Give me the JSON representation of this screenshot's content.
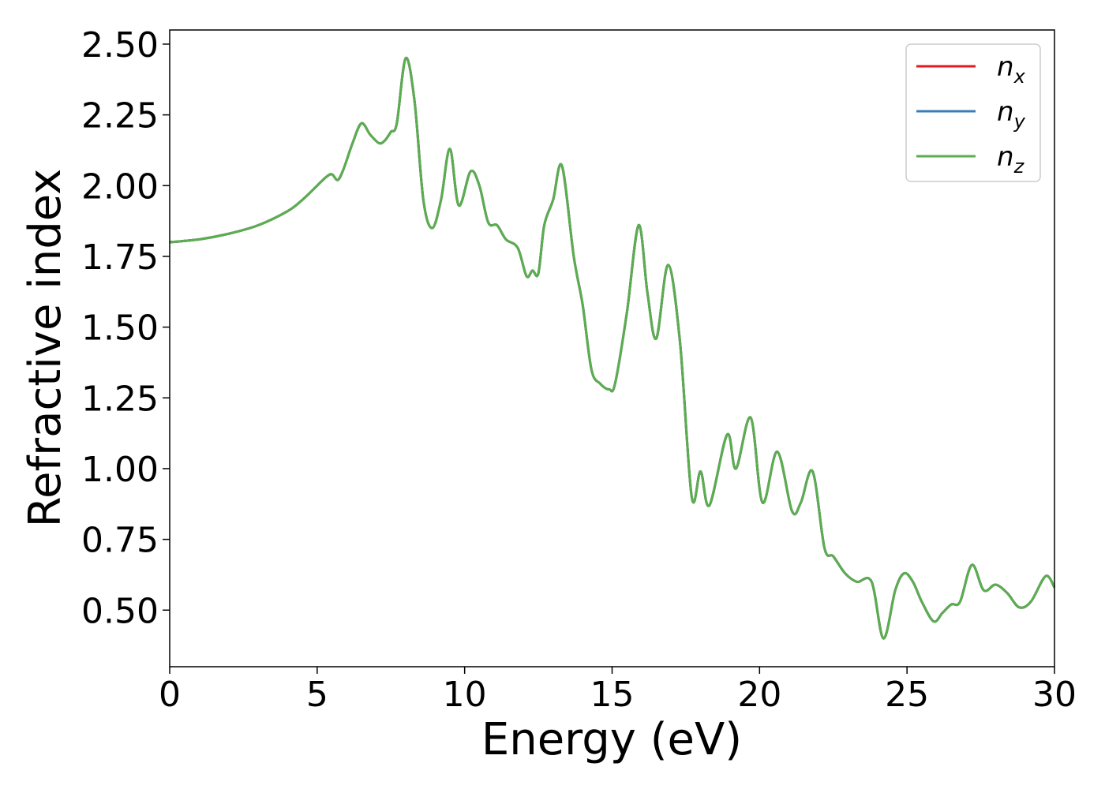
{
  "chart_data": {
    "type": "line",
    "xlabel": "Energy (eV)",
    "ylabel": "Refractive index",
    "xlim": [
      0,
      30
    ],
    "ylim": [
      0.3,
      2.55
    ],
    "xticks": [
      "0",
      "5",
      "10",
      "15",
      "20",
      "25",
      "30"
    ],
    "yticks": [
      "0.50",
      "0.75",
      "1.00",
      "1.25",
      "1.50",
      "1.75",
      "2.00",
      "2.25",
      "2.50"
    ],
    "grid": false,
    "legend_position": "top-right",
    "series": [
      {
        "name": "n_x",
        "legend_base": "n",
        "legend_sub": "x",
        "color": "#e41a1c",
        "x": [
          0,
          1,
          2,
          3,
          4,
          4.5,
          5,
          5.3,
          5.5,
          5.7,
          5.9,
          6.2,
          6.5,
          6.8,
          7.1,
          7.3,
          7.5,
          7.7,
          8,
          8.3,
          8.6,
          8.9,
          9.2,
          9.5,
          9.8,
          10.2,
          10.5,
          10.8,
          11.1,
          11.4,
          11.8,
          12.1,
          12.3,
          12.5,
          12.7,
          13,
          13.3,
          13.7,
          14,
          14.3,
          14.6,
          14.9,
          15.1,
          15.5,
          15.9,
          16.2,
          16.5,
          16.9,
          17.3,
          17.7,
          18,
          18.3,
          18.9,
          19.2,
          19.7,
          20.1,
          20.6,
          21.1,
          21.4,
          21.8,
          22.2,
          22.5,
          22.9,
          23.3,
          23.8,
          24.2,
          24.6,
          24.9,
          25.2,
          25.5,
          25.9,
          26.2,
          26.5,
          26.8,
          27.2,
          27.6,
          28,
          28.4,
          28.8,
          29.2,
          29.7,
          30
        ],
        "y": [
          1.8,
          1.81,
          1.83,
          1.86,
          1.91,
          1.95,
          2.0,
          2.03,
          2.04,
          2.02,
          2.06,
          2.15,
          2.22,
          2.18,
          2.15,
          2.16,
          2.19,
          2.22,
          2.45,
          2.3,
          1.95,
          1.85,
          1.95,
          2.13,
          1.93,
          2.05,
          2.0,
          1.87,
          1.86,
          1.81,
          1.78,
          1.68,
          1.7,
          1.69,
          1.86,
          1.95,
          2.07,
          1.75,
          1.58,
          1.35,
          1.3,
          1.28,
          1.3,
          1.55,
          1.86,
          1.62,
          1.46,
          1.72,
          1.45,
          0.9,
          0.99,
          0.87,
          1.12,
          1.0,
          1.18,
          0.88,
          1.06,
          0.85,
          0.88,
          0.99,
          0.72,
          0.69,
          0.63,
          0.6,
          0.6,
          0.4,
          0.57,
          0.63,
          0.6,
          0.53,
          0.46,
          0.49,
          0.52,
          0.53,
          0.66,
          0.57,
          0.59,
          0.56,
          0.51,
          0.53,
          0.62,
          0.58
        ]
      },
      {
        "name": "n_y",
        "legend_base": "n",
        "legend_sub": "y",
        "color": "#377eb8",
        "x": [
          0,
          1,
          2,
          3,
          4,
          4.5,
          5,
          5.3,
          5.5,
          5.7,
          5.9,
          6.2,
          6.5,
          6.8,
          7.1,
          7.3,
          7.5,
          7.7,
          8,
          8.3,
          8.6,
          8.9,
          9.2,
          9.5,
          9.8,
          10.2,
          10.5,
          10.8,
          11.1,
          11.4,
          11.8,
          12.1,
          12.3,
          12.5,
          12.7,
          13,
          13.3,
          13.7,
          14,
          14.3,
          14.6,
          14.9,
          15.1,
          15.5,
          15.9,
          16.2,
          16.5,
          16.9,
          17.3,
          17.7,
          18,
          18.3,
          18.9,
          19.2,
          19.7,
          20.1,
          20.6,
          21.1,
          21.4,
          21.8,
          22.2,
          22.5,
          22.9,
          23.3,
          23.8,
          24.2,
          24.6,
          24.9,
          25.2,
          25.5,
          25.9,
          26.2,
          26.5,
          26.8,
          27.2,
          27.6,
          28,
          28.4,
          28.8,
          29.2,
          29.7,
          30
        ],
        "y": [
          1.8,
          1.81,
          1.83,
          1.86,
          1.91,
          1.95,
          2.0,
          2.03,
          2.04,
          2.02,
          2.06,
          2.15,
          2.22,
          2.18,
          2.15,
          2.16,
          2.19,
          2.22,
          2.45,
          2.3,
          1.95,
          1.85,
          1.95,
          2.13,
          1.93,
          2.05,
          2.0,
          1.87,
          1.86,
          1.81,
          1.78,
          1.68,
          1.7,
          1.69,
          1.86,
          1.95,
          2.07,
          1.75,
          1.58,
          1.35,
          1.3,
          1.28,
          1.3,
          1.55,
          1.86,
          1.62,
          1.46,
          1.72,
          1.45,
          0.9,
          0.99,
          0.87,
          1.12,
          1.0,
          1.18,
          0.88,
          1.06,
          0.85,
          0.88,
          0.99,
          0.72,
          0.69,
          0.63,
          0.6,
          0.6,
          0.4,
          0.57,
          0.63,
          0.6,
          0.53,
          0.46,
          0.49,
          0.52,
          0.53,
          0.66,
          0.57,
          0.59,
          0.56,
          0.51,
          0.53,
          0.62,
          0.58
        ]
      },
      {
        "name": "n_z",
        "legend_base": "n",
        "legend_sub": "z",
        "color": "#5aae4f",
        "x": [
          0,
          1,
          2,
          3,
          4,
          4.5,
          5,
          5.3,
          5.5,
          5.7,
          5.9,
          6.2,
          6.5,
          6.8,
          7.1,
          7.3,
          7.5,
          7.7,
          8,
          8.3,
          8.6,
          8.9,
          9.2,
          9.5,
          9.8,
          10.2,
          10.5,
          10.8,
          11.1,
          11.4,
          11.8,
          12.1,
          12.3,
          12.5,
          12.7,
          13,
          13.3,
          13.7,
          14,
          14.3,
          14.6,
          14.9,
          15.1,
          15.5,
          15.9,
          16.2,
          16.5,
          16.9,
          17.3,
          17.7,
          18,
          18.3,
          18.9,
          19.2,
          19.7,
          20.1,
          20.6,
          21.1,
          21.4,
          21.8,
          22.2,
          22.5,
          22.9,
          23.3,
          23.8,
          24.2,
          24.6,
          24.9,
          25.2,
          25.5,
          25.9,
          26.2,
          26.5,
          26.8,
          27.2,
          27.6,
          28,
          28.4,
          28.8,
          29.2,
          29.7,
          30
        ],
        "y": [
          1.8,
          1.81,
          1.83,
          1.86,
          1.91,
          1.95,
          2.0,
          2.03,
          2.04,
          2.02,
          2.06,
          2.15,
          2.22,
          2.18,
          2.15,
          2.16,
          2.19,
          2.22,
          2.45,
          2.3,
          1.95,
          1.85,
          1.95,
          2.13,
          1.93,
          2.05,
          2.0,
          1.87,
          1.86,
          1.81,
          1.78,
          1.68,
          1.7,
          1.69,
          1.86,
          1.95,
          2.07,
          1.75,
          1.58,
          1.35,
          1.3,
          1.28,
          1.3,
          1.55,
          1.86,
          1.62,
          1.46,
          1.72,
          1.45,
          0.9,
          0.99,
          0.87,
          1.12,
          1.0,
          1.18,
          0.88,
          1.06,
          0.85,
          0.88,
          0.99,
          0.72,
          0.69,
          0.63,
          0.6,
          0.6,
          0.4,
          0.57,
          0.63,
          0.6,
          0.53,
          0.46,
          0.49,
          0.52,
          0.53,
          0.66,
          0.57,
          0.59,
          0.56,
          0.51,
          0.53,
          0.62,
          0.58
        ]
      }
    ]
  }
}
